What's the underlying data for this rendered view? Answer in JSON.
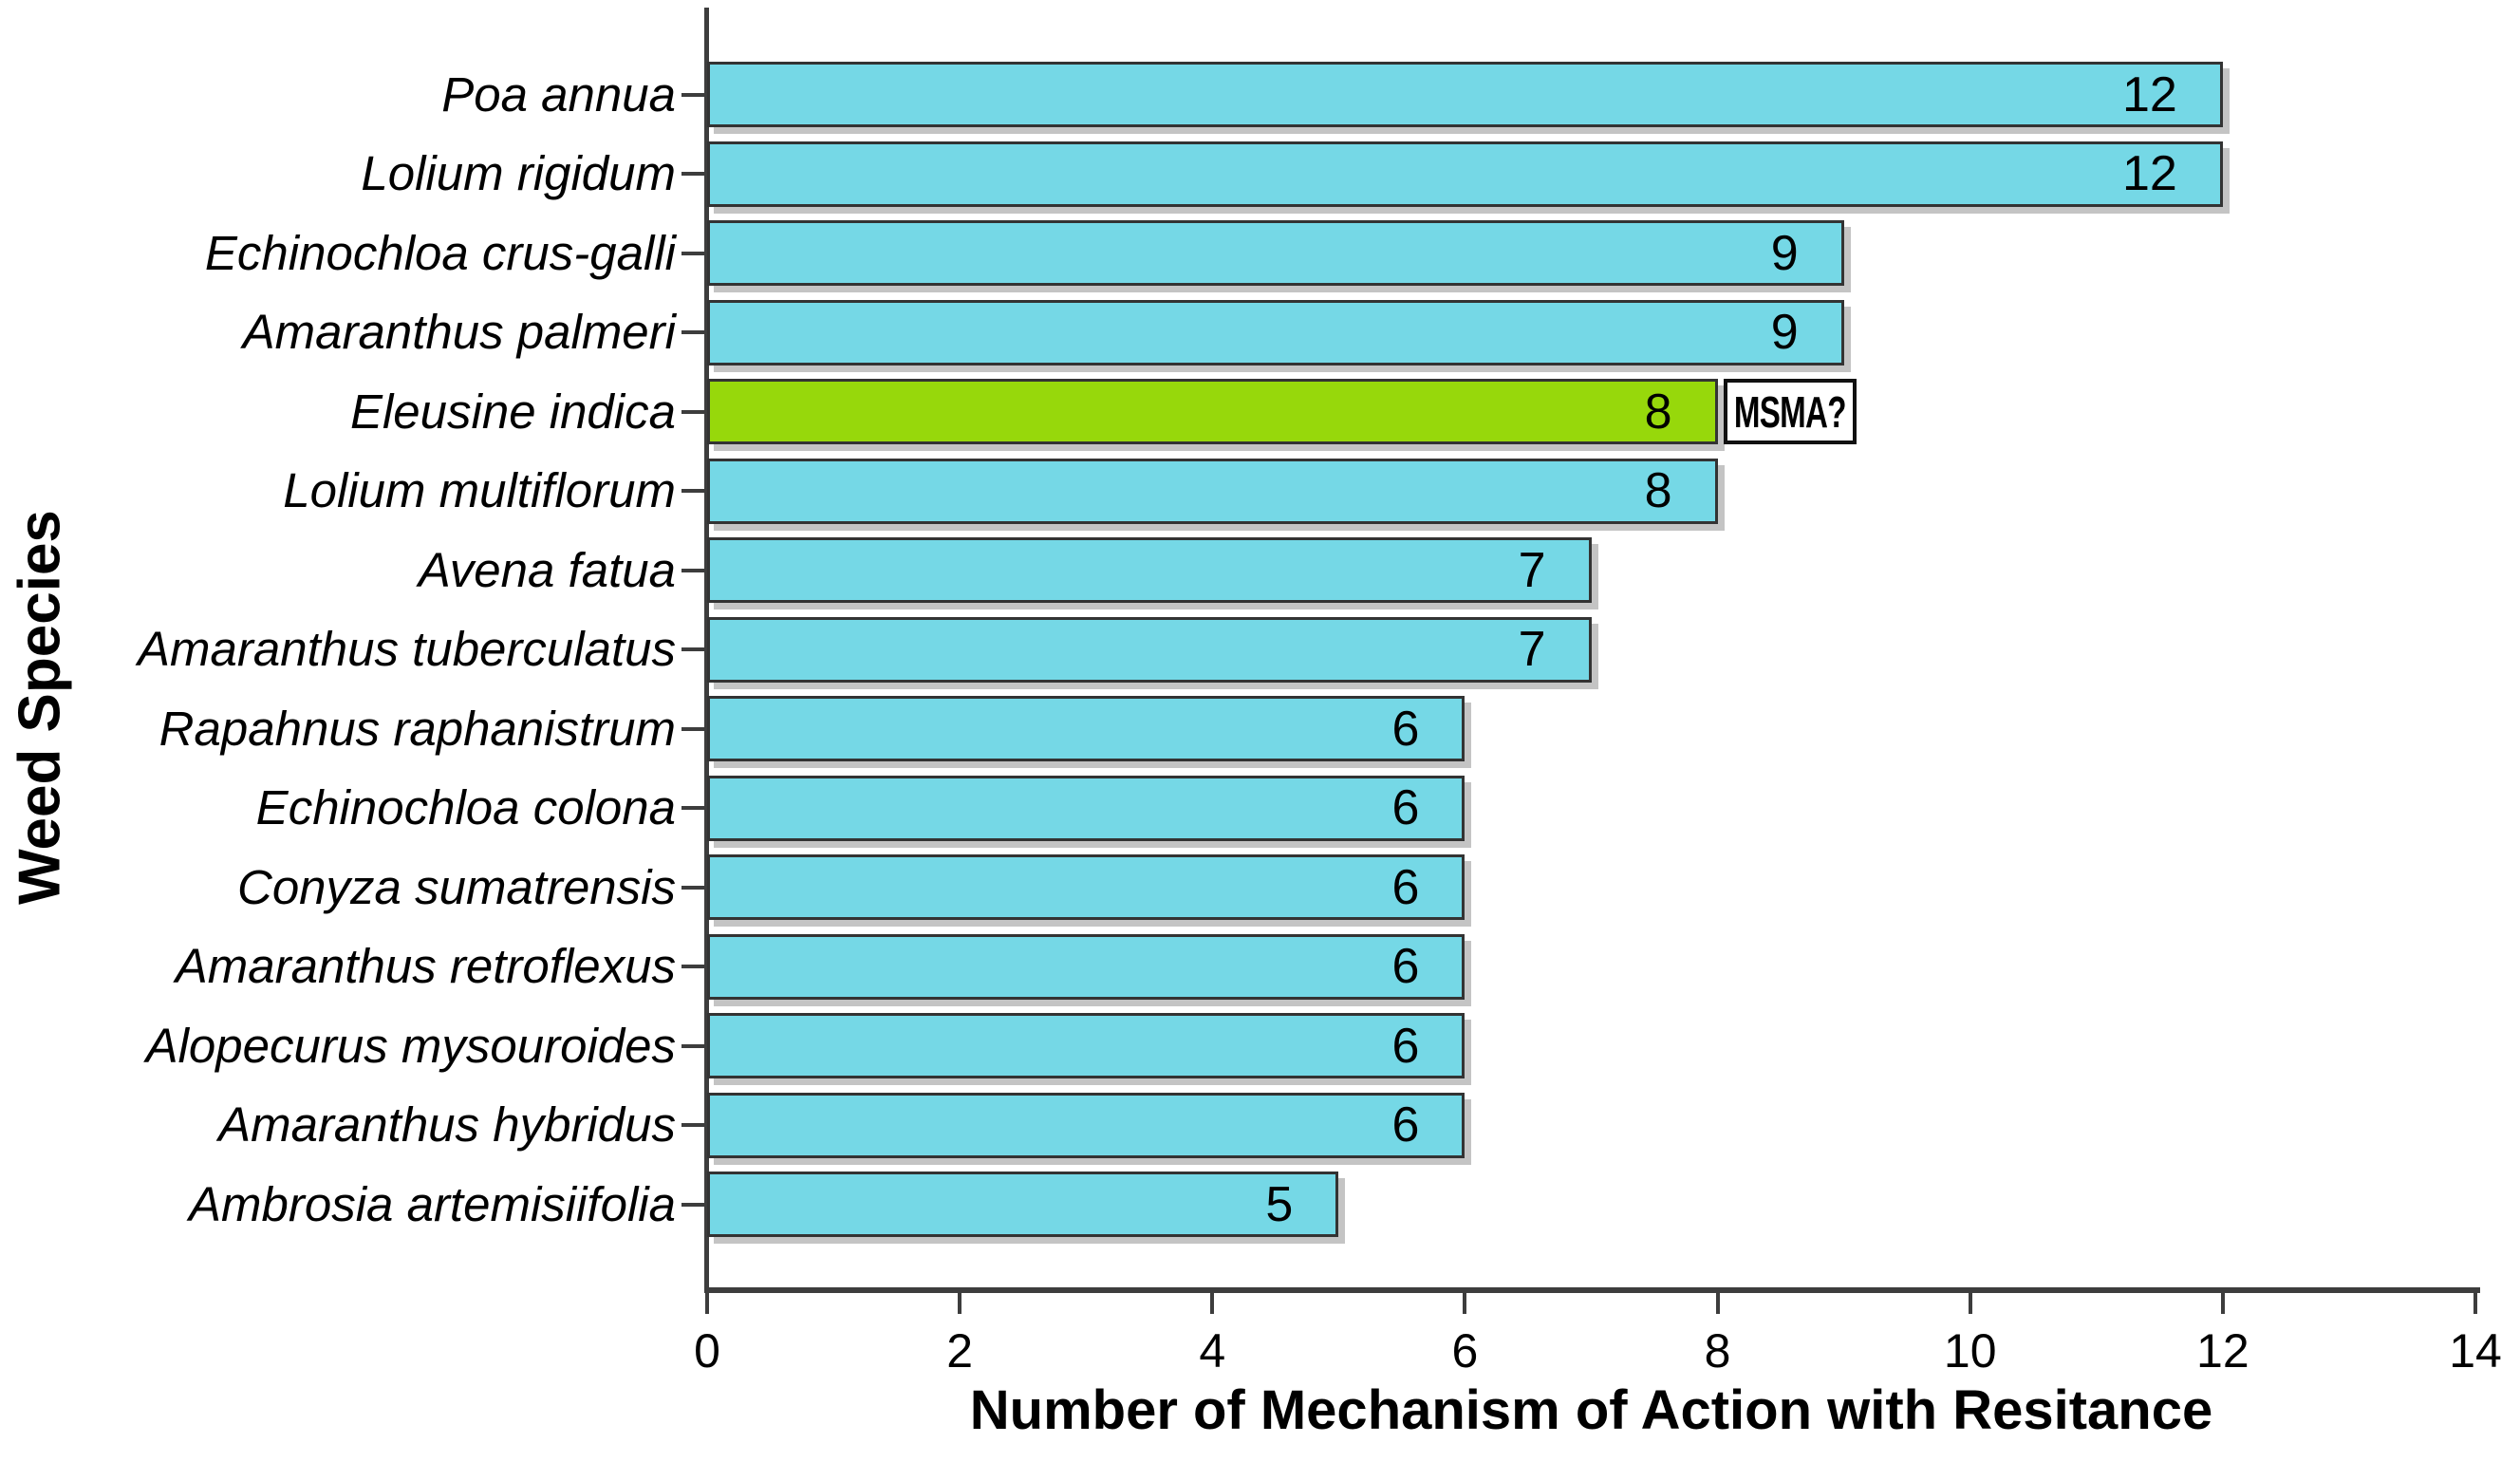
{
  "chart_data": {
    "type": "bar",
    "orientation": "horizontal",
    "title": "",
    "xlabel": "Number of Mechanism of Action with Resitance",
    "ylabel": "Weed Species",
    "xlim": [
      0,
      14
    ],
    "xticks": [
      0,
      2,
      4,
      6,
      8,
      10,
      12,
      14
    ],
    "grid": false,
    "legend": false,
    "bars": [
      {
        "label": "Poa annua",
        "value": 12,
        "value_label": "12"
      },
      {
        "label": "Lolium rigidum",
        "value": 12,
        "value_label": "12"
      },
      {
        "label": "Echinochloa crus-galli",
        "value": 9,
        "value_label": "9"
      },
      {
        "label": "Amaranthus palmeri",
        "value": 9,
        "value_label": "9"
      },
      {
        "label": "Eleusine indica",
        "value": 8,
        "value_label": "8",
        "highlight": true,
        "annotation": "MSMA?"
      },
      {
        "label": "Lolium multiflorum",
        "value": 8,
        "value_label": "8"
      },
      {
        "label": "Avena fatua",
        "value": 7,
        "value_label": "7"
      },
      {
        "label": "Amaranthus tuberculatus",
        "value": 7,
        "value_label": "7"
      },
      {
        "label": "Rapahnus raphanistrum",
        "value": 6,
        "value_label": "6"
      },
      {
        "label": "Echinochloa colona",
        "value": 6,
        "value_label": "6"
      },
      {
        "label": "Conyza sumatrensis",
        "value": 6,
        "value_label": "6"
      },
      {
        "label": "Amaranthus retroflexus",
        "value": 6,
        "value_label": "6"
      },
      {
        "label": "Alopecurus mysouroides",
        "value": 6,
        "value_label": "6"
      },
      {
        "label": "Amaranthus hybridus",
        "value": 6,
        "value_label": "6"
      },
      {
        "label": "Ambrosia artemisiifolia",
        "value": 5,
        "value_label": "5"
      }
    ],
    "colors": {
      "bar_fill": "#75d8e6",
      "highlight_fill": "#97d80b",
      "bar_border": "#333333",
      "axis": "#3d3d3d",
      "annotation_bg": "#ffffff",
      "annotation_border": "#111111",
      "text": "#000000"
    }
  }
}
